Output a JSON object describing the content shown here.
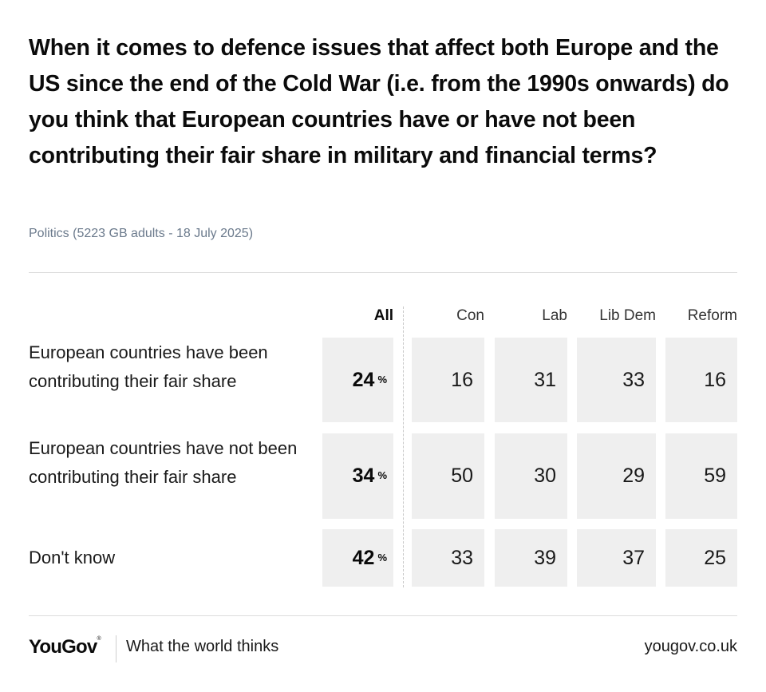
{
  "chart_data": {
    "type": "table",
    "title": "When it comes to defence issues that affect both Europe and the US since the end of the Cold War (i.e. from the 1990s onwards) do you think that European countries have or have not been contributing their fair share in military and financial terms?",
    "subtitle": "Politics (5223 GB adults - 18 July 2025)",
    "columns": [
      "All",
      "Con",
      "Lab",
      "Lib Dem",
      "Reform"
    ],
    "unit": "%",
    "rows": [
      {
        "label": "European countries have been contributing their fair share",
        "values": [
          "24",
          "16",
          "31",
          "33",
          "16"
        ]
      },
      {
        "label": "European countries have not been contributing their fair share",
        "values": [
          "34",
          "50",
          "30",
          "29",
          "59"
        ]
      },
      {
        "label": "Don't know",
        "values": [
          "42",
          "33",
          "39",
          "37",
          "25"
        ]
      }
    ]
  },
  "colors": {
    "cell_background": "#efefef",
    "subtitle": "#6b7a8c",
    "text": "#111111"
  },
  "footer": {
    "logo": "YouGov",
    "tagline": "What the world thinks",
    "url": "yougov.co.uk"
  }
}
